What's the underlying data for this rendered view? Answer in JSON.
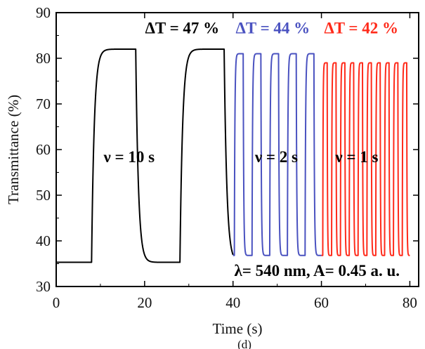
{
  "chart_data": {
    "type": "line",
    "xlabel": "Time (s)",
    "ylabel": "Transmittance (%)",
    "xlim": [
      0,
      82
    ],
    "ylim": [
      30,
      90
    ],
    "x_ticks": [
      0,
      20,
      40,
      60,
      80
    ],
    "y_ticks": [
      30,
      40,
      50,
      60,
      70,
      80,
      90
    ],
    "series": [
      {
        "color": "#000000",
        "period_s": 20,
        "start_s": 0,
        "end_s": 40,
        "phase_s": 8,
        "low": 35.3,
        "high": 82.0,
        "tau_s": 0.6
      },
      {
        "color": "#4a52c0",
        "period_s": 4,
        "start_s": 40,
        "end_s": 60,
        "phase_s": 0.3,
        "low": 36.8,
        "high": 81.0,
        "tau_s": 0.12
      },
      {
        "color": "#ff2a1a",
        "period_s": 2,
        "start_s": 60,
        "end_s": 80,
        "phase_s": 0.3,
        "low": 36.8,
        "high": 79.0,
        "tau_s": 0.07
      }
    ],
    "annotations": [
      {
        "text": "ΔT = 47 %",
        "color": "#000000",
        "x": 28.5,
        "y": 85.5
      },
      {
        "text": "ΔT = 44 %",
        "color": "#4a52c0",
        "x": 49,
        "y": 85.5
      },
      {
        "text": "ΔT = 42 %",
        "color": "#ff2a1a",
        "x": 69,
        "y": 85.5
      },
      {
        "text": "ν = 10 s",
        "color": "#000000",
        "x": 16.5,
        "y": 57.2
      },
      {
        "text": "ν = 2 s",
        "color": "#000000",
        "x": 49.8,
        "y": 57.2
      },
      {
        "text": "ν = 1 s",
        "color": "#000000",
        "x": 68,
        "y": 57.2
      },
      {
        "text": "λ= 540 nm, A= 0.45 a. u.",
        "color": "#000000",
        "x": 59,
        "y": 32.3
      }
    ]
  },
  "caption": "(d)"
}
